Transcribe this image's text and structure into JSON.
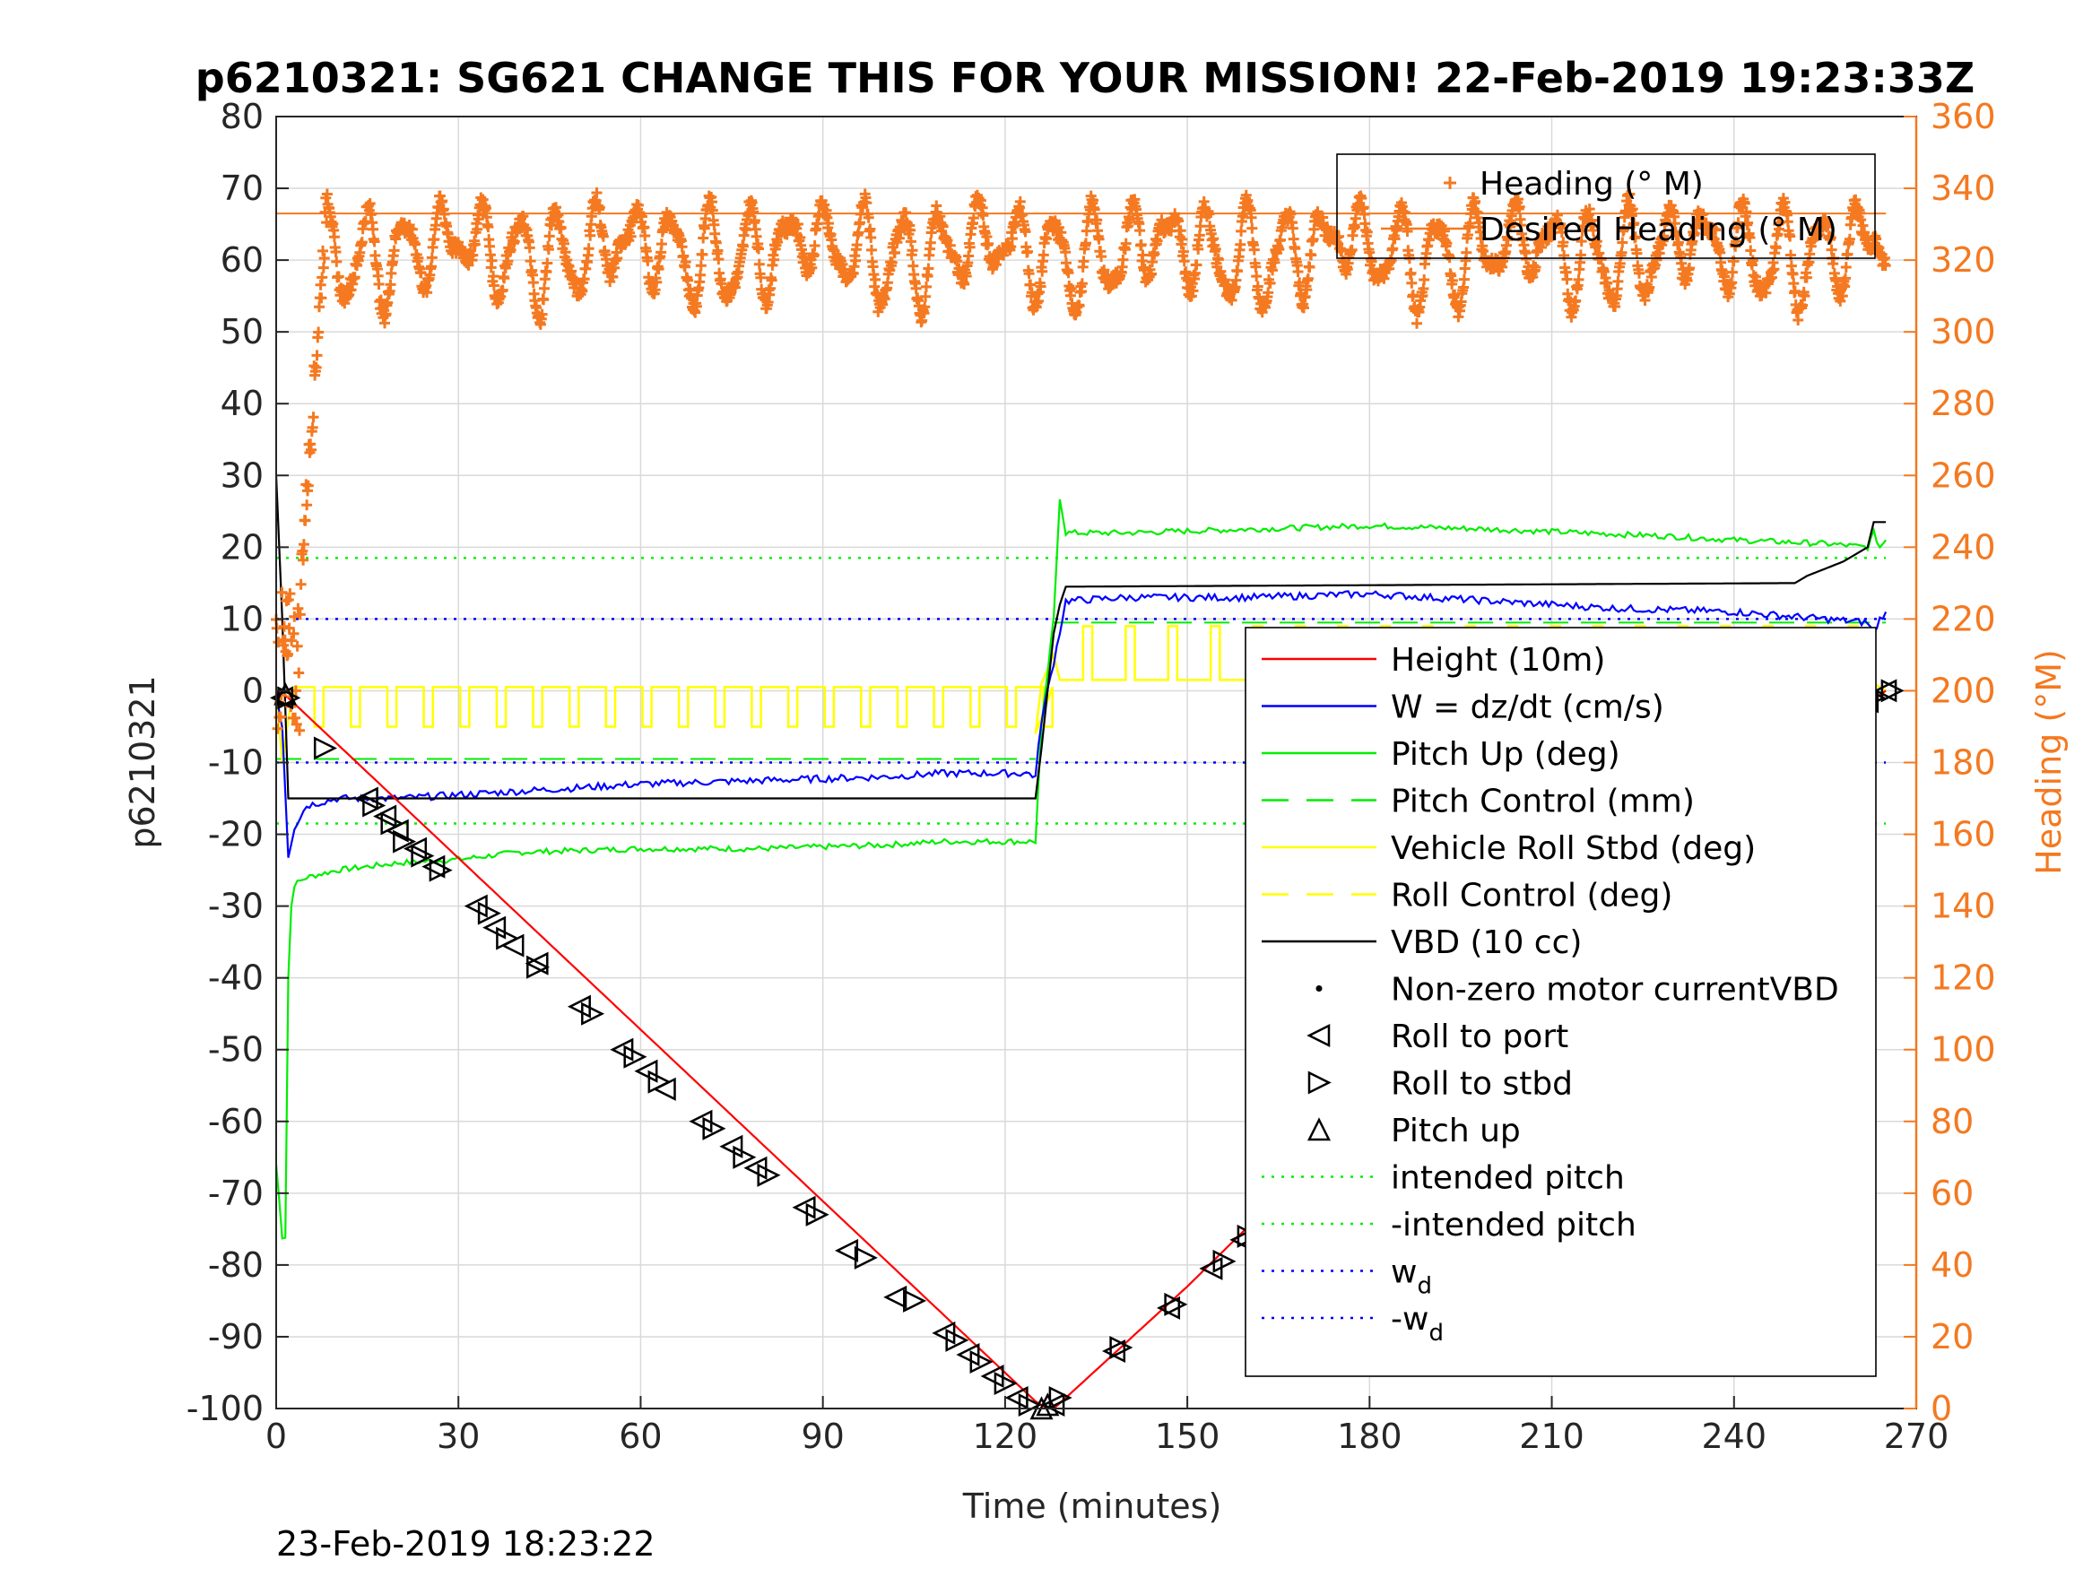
{
  "chart_data": {
    "type": "line",
    "title": "p6210321: SG621 CHANGE THIS FOR YOUR MISSION! 22-Feb-2019 19:23:33Z",
    "xlabel": "Time (minutes)",
    "ylabel_left": "p6210321",
    "ylabel_right": "Heading (°M)",
    "xlim": [
      0,
      270
    ],
    "ylim_left": [
      -100,
      80
    ],
    "ylim_right": [
      0,
      360
    ],
    "x_ticks": [
      0,
      30,
      60,
      90,
      120,
      150,
      180,
      210,
      240,
      270
    ],
    "y_ticks_left": [
      80,
      70,
      60,
      50,
      40,
      30,
      20,
      10,
      0,
      -10,
      -20,
      -30,
      -40,
      -50,
      -60,
      -70,
      -80,
      -90,
      -100
    ],
    "y_ticks_right": [
      360,
      340,
      320,
      300,
      280,
      260,
      240,
      220,
      200,
      180,
      160,
      140,
      120,
      100,
      80,
      60,
      40,
      20,
      0
    ],
    "grid": true,
    "footer_text": "23-Feb-2019 18:23:22",
    "colors": {
      "height": "#ff0000",
      "w": "#0000ff",
      "pitch": "#00ee00",
      "roll": "#ffff00",
      "vbd": "#000000",
      "heading": "#f47920",
      "grid": "#d9d9d9",
      "right_axis": "#f47920"
    },
    "heading_legend": [
      {
        "label": "Heading (° M)",
        "style": "plus"
      },
      {
        "label": "Desired Heading (° M)",
        "style": "line"
      }
    ],
    "legend": [
      {
        "label": "Height (10m)",
        "style": "line",
        "color": "#ff0000"
      },
      {
        "label": "W = dz/dt (cm/s)",
        "style": "line",
        "color": "#0000ff"
      },
      {
        "label": "Pitch Up (deg)",
        "style": "line",
        "color": "#00ee00"
      },
      {
        "label": "Pitch Control (mm)",
        "style": "dash",
        "color": "#00ee00"
      },
      {
        "label": "Vehicle Roll Stbd (deg)",
        "style": "line",
        "color": "#ffff00"
      },
      {
        "label": "Roll Control (deg)",
        "style": "dash",
        "color": "#ffff00"
      },
      {
        "label": "VBD (10 cc)",
        "style": "line",
        "color": "#000000"
      },
      {
        "label": "Non-zero motor currentVBD",
        "style": "dot",
        "color": "#000000"
      },
      {
        "label": "Roll to port",
        "style": "tri-left",
        "color": "#000000"
      },
      {
        "label": "Roll to stbd",
        "style": "tri-right",
        "color": "#000000"
      },
      {
        "label": "Pitch up",
        "style": "tri-up",
        "color": "#000000"
      },
      {
        "label": "intended pitch",
        "style": "dot-line",
        "color": "#00ee00"
      },
      {
        "label": "-intended pitch",
        "style": "dot-line",
        "color": "#00ee00"
      },
      {
        "label": "w",
        "sub": "d",
        "style": "dot-line",
        "color": "#0000ff"
      },
      {
        "label": "-w",
        "sub": "d",
        "style": "dot-line",
        "color": "#0000ff"
      }
    ],
    "series": [
      {
        "name": "Height (10m)",
        "axis": "left",
        "x": [
          0,
          2,
          125,
          127,
          128,
          130,
          150,
          180,
          210,
          240,
          260,
          265
        ],
        "y": [
          0,
          -1,
          -99,
          -100,
          -100,
          -98.5,
          -83,
          -58,
          -33,
          -16,
          -3,
          0
        ]
      },
      {
        "name": "W = dz/dt (cm/s)",
        "axis": "left",
        "x": [
          0,
          1,
          2,
          3,
          5,
          10,
          20,
          40,
          60,
          80,
          100,
          110,
          124,
          125,
          126,
          128,
          130,
          140,
          160,
          180,
          200,
          220,
          240,
          255,
          262,
          263,
          264,
          265
        ],
        "y": [
          0,
          -5,
          -23,
          -19,
          -16,
          -15,
          -15,
          -14,
          -13,
          -12.5,
          -12,
          -11.5,
          -11.5,
          -12,
          -4,
          4,
          12.5,
          13,
          13,
          13.5,
          12.5,
          11.5,
          11,
          10,
          9.5,
          8,
          10,
          11
        ]
      },
      {
        "name": "Pitch Up (deg)",
        "axis": "left",
        "x": [
          0,
          1,
          1.5,
          2,
          2.5,
          3,
          5,
          10,
          20,
          30,
          40,
          60,
          80,
          100,
          110,
          124,
          125,
          126,
          128,
          129,
          130,
          140,
          160,
          180,
          200,
          230,
          240,
          255,
          262,
          263,
          264,
          265
        ],
        "y": [
          -66,
          -76,
          -76,
          -40,
          -30,
          -27,
          -26,
          -25,
          -24,
          -23.5,
          -22.5,
          -22,
          -22,
          -21.5,
          -21,
          -21,
          -21,
          -5,
          10,
          27,
          22,
          22,
          22.5,
          23,
          22.5,
          21.5,
          21,
          20.5,
          20,
          22,
          20,
          21
        ]
      },
      {
        "name": "VBD (10 cc)",
        "axis": "left",
        "x": [
          0,
          1,
          2,
          124,
          125,
          126,
          127,
          128,
          129,
          130,
          250,
          252,
          255,
          258,
          262,
          263,
          265
        ],
        "y": [
          30,
          10,
          -15,
          -15,
          -15,
          -8,
          0,
          8,
          12,
          14.5,
          15,
          16,
          17,
          18,
          20,
          23.5,
          23.5
        ]
      },
      {
        "name": "Vehicle Roll Stbd (deg)",
        "axis": "left",
        "kind": "roll"
      },
      {
        "name": "Heading (° M)",
        "axis": "right",
        "kind": "heading-scatter"
      },
      {
        "name": "Desired Heading (° M)",
        "axis": "right",
        "x": [
          0,
          265
        ],
        "y": [
          333,
          333
        ]
      },
      {
        "name": "intended pitch",
        "axis": "left",
        "x": [
          0,
          265
        ],
        "y": [
          18.5,
          18.5
        ]
      },
      {
        "name": "-intended pitch",
        "axis": "left",
        "x": [
          0,
          265
        ],
        "y": [
          -18.5,
          -18.5
        ]
      },
      {
        "name": "w_d",
        "axis": "left",
        "x": [
          0,
          265
        ],
        "y": [
          10,
          10
        ]
      },
      {
        "name": "-w_d",
        "axis": "left",
        "x": [
          0,
          265
        ],
        "y": [
          -10,
          -10
        ]
      },
      {
        "name": "Pitch Control (mm)",
        "axis": "left",
        "x": [
          0,
          125,
          128,
          265
        ],
        "y": [
          -9.5,
          -9.5,
          9.5,
          9.5
        ]
      }
    ],
    "markers": {
      "roll_to_port": {
        "x": [
          1,
          15,
          18,
          20,
          23,
          26,
          33,
          36,
          39,
          43,
          50,
          57,
          61,
          64,
          70,
          75,
          79,
          87,
          94,
          102,
          110,
          114,
          118,
          122,
          128,
          138,
          147,
          154,
          159,
          166,
          170,
          173,
          177,
          186,
          195,
          202,
          205,
          213,
          221,
          225,
          229,
          234,
          236,
          250,
          254,
          258,
          262,
          265
        ],
        "y": [
          -1,
          -15,
          -17.5,
          -19.5,
          -22,
          -24.5,
          -30,
          -33,
          -35.5,
          -38,
          -44,
          -50,
          -53,
          -55.5,
          -60,
          -63.5,
          -66.5,
          -72,
          -78,
          -84.5,
          -89.5,
          -92.5,
          -95.5,
          -98.5,
          -99.5,
          -92,
          -86,
          -80.5,
          -76.5,
          -70.5,
          -67.5,
          -64.5,
          -61,
          -54,
          -47.5,
          -42,
          -39.5,
          -34,
          -28.5,
          -25.5,
          -22.5,
          -19,
          -17.5,
          -9.5,
          -6,
          -3.5,
          -1.5,
          0
        ]
      },
      "roll_to_stbd": {
        "x": [
          2,
          8,
          16,
          19,
          21,
          24,
          27,
          35,
          38,
          43,
          52,
          59,
          63,
          72,
          77,
          81,
          89,
          97,
          105,
          112,
          116,
          120,
          124,
          129,
          139,
          148,
          156,
          160,
          168,
          172,
          175,
          179,
          188,
          196,
          203,
          206,
          214,
          223,
          227,
          230,
          238,
          251,
          255,
          259,
          263,
          266
        ],
        "y": [
          -1,
          -8,
          -16,
          -18.5,
          -21,
          -23,
          -25,
          -31,
          -34.5,
          -38.5,
          -45,
          -51,
          -54.5,
          -61,
          -65,
          -67.5,
          -73,
          -79,
          -85,
          -90.5,
          -93.5,
          -96.5,
          -99.5,
          -98.5,
          -91.5,
          -85.5,
          -79.5,
          -76,
          -70,
          -66.5,
          -63.5,
          -60.5,
          -53.5,
          -47,
          -41.5,
          -39,
          -33.5,
          -27,
          -24,
          -21.5,
          -16,
          -9,
          -5.5,
          -3,
          -1,
          0
        ]
      },
      "pitch_up": {
        "x": [
          1.5,
          126,
          127
        ],
        "y": [
          -0.5,
          -100,
          -99.5
        ]
      }
    }
  }
}
